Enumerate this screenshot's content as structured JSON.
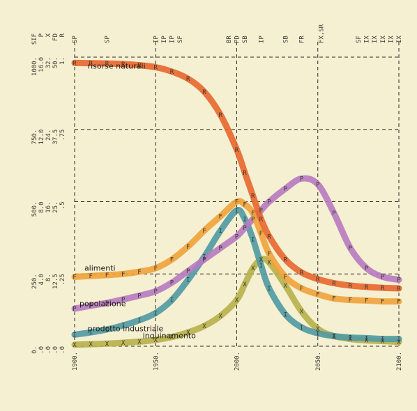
{
  "chart_data": {
    "type": "line",
    "x": [
      1900,
      1910,
      1920,
      1930,
      1940,
      1950,
      1960,
      1970,
      1980,
      1990,
      2000,
      2005,
      2010,
      2015,
      2020,
      2030,
      2040,
      2050,
      2060,
      2070,
      2080,
      2090,
      2100
    ],
    "xlim": [
      1900,
      2100
    ],
    "x_ticks": [
      "1900.",
      "1950.",
      "2000.",
      "2050.",
      "2100."
    ],
    "ylim": [
      0,
      1000
    ],
    "y_tick_values": [
      0,
      250,
      500,
      750,
      1000
    ],
    "y_tick_columns": [
      [
        "0.",
        "250.",
        "500.",
        "750.",
        "1000."
      ],
      [
        ".0",
        "4.0",
        "8.0",
        "12.0",
        "16.0"
      ],
      [
        ".0",
        "8.",
        "16.",
        "24.",
        "32."
      ],
      [
        ".0",
        "12.5",
        "25.",
        "37.5",
        "50."
      ],
      [
        ".0",
        ".25",
        ".5",
        ".75",
        "1."
      ]
    ],
    "scale_symbols": [
      "SIF",
      "P",
      "X",
      "FD",
      "R"
    ],
    "marker_columns": [
      {
        "year": 1900,
        "text": "SP"
      },
      {
        "year": 1920,
        "text": "SP"
      },
      {
        "year": 1950,
        "text": "IP"
      },
      {
        "year": 1955,
        "text": "IP"
      },
      {
        "year": 1960,
        "text": "IP"
      },
      {
        "year": 1965,
        "text": "SF"
      },
      {
        "year": 1995,
        "text": "BR"
      },
      {
        "year": 2000,
        "text": "PD"
      },
      {
        "year": 2005,
        "text": "SB"
      },
      {
        "year": 2015,
        "text": "IP"
      },
      {
        "year": 2030,
        "text": "SB"
      },
      {
        "year": 2040,
        "text": "FR"
      },
      {
        "year": 2052,
        "text": "FX,SR"
      },
      {
        "year": 2075,
        "text": "SF"
      },
      {
        "year": 2080,
        "text": "IX"
      },
      {
        "year": 2085,
        "text": "IX"
      },
      {
        "year": 2090,
        "text": "IX"
      },
      {
        "year": 2095,
        "text": "IX"
      },
      {
        "year": 2100,
        "text": "IX"
      }
    ],
    "series": [
      {
        "name": "risorse naturali",
        "symbol": "R",
        "color": "#e8662c",
        "values": [
          980,
          979,
          978,
          976,
          972,
          965,
          950,
          925,
          880,
          800,
          680,
          600,
          520,
          440,
          380,
          300,
          255,
          232,
          218,
          210,
          205,
          202,
          200
        ]
      },
      {
        "name": "alimenti",
        "symbol": "F",
        "color": "#f0a23a",
        "values": [
          240,
          243,
          246,
          250,
          258,
          270,
          300,
          345,
          400,
          450,
          500,
          490,
          460,
          390,
          320,
          240,
          200,
          180,
          165,
          160,
          158,
          155,
          155
        ]
      },
      {
        "name": "popolazione",
        "symbol": "P",
        "color": "#b77ac0",
        "values": [
          130,
          140,
          150,
          162,
          175,
          190,
          220,
          260,
          300,
          340,
          380,
          410,
          440,
          470,
          500,
          545,
          580,
          560,
          460,
          340,
          270,
          240,
          230
        ]
      },
      {
        "name": "prodotto industriale",
        "symbol": "I",
        "color": "#4f9aa3",
        "values": [
          40,
          48,
          58,
          72,
          90,
          115,
          160,
          230,
          310,
          400,
          470,
          440,
          370,
          280,
          200,
          110,
          65,
          45,
          35,
          30,
          28,
          25,
          25
        ]
      },
      {
        "name": "inquinamento",
        "symbol": "X",
        "color": "#b8b04a",
        "values": [
          5,
          7,
          9,
          12,
          16,
          22,
          32,
          48,
          70,
          105,
          160,
          215,
          270,
          300,
          290,
          210,
          120,
          60,
          35,
          25,
          20,
          18,
          15
        ]
      }
    ],
    "grid": true
  }
}
